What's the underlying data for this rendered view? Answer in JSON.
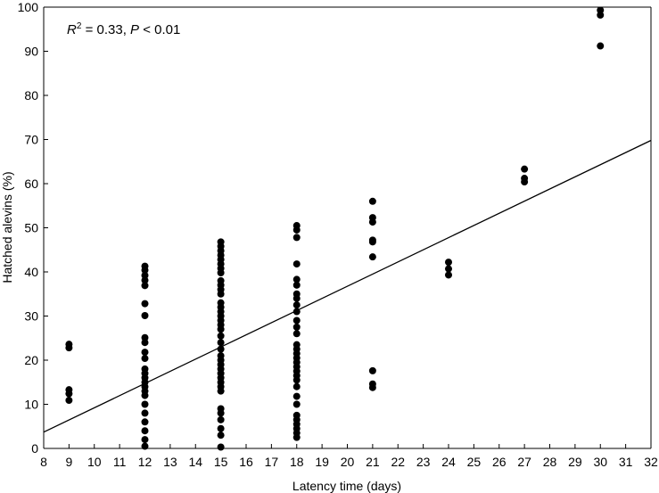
{
  "chart_data": {
    "type": "scatter",
    "title": "",
    "xlabel": "Latency time (days)",
    "ylabel": "Hatched alevins (%)",
    "xlim": [
      8,
      32
    ],
    "ylim": [
      0,
      100
    ],
    "xticks": [
      8,
      9,
      10,
      11,
      12,
      13,
      14,
      15,
      16,
      17,
      18,
      19,
      20,
      21,
      22,
      23,
      24,
      25,
      26,
      27,
      28,
      29,
      30,
      31,
      32
    ],
    "yticks": [
      0,
      10,
      20,
      30,
      40,
      50,
      60,
      70,
      80,
      90,
      100
    ],
    "grid": false,
    "legend": "none",
    "annotation": {
      "r_label": "R",
      "r_exp": "2",
      "r_value": " = 0.33, ",
      "p_label": "P",
      "p_value": " < 0.01"
    },
    "regression_line": {
      "x": [
        8,
        32
      ],
      "y": [
        3.7,
        69.8
      ]
    },
    "points": [
      {
        "x": 9,
        "y": 23.6
      },
      {
        "x": 9,
        "y": 22.8
      },
      {
        "x": 9,
        "y": 13.3
      },
      {
        "x": 9,
        "y": 12.4
      },
      {
        "x": 9,
        "y": 10.9
      },
      {
        "x": 12,
        "y": 41.3
      },
      {
        "x": 12,
        "y": 40.4
      },
      {
        "x": 12,
        "y": 39.2
      },
      {
        "x": 12,
        "y": 38.1
      },
      {
        "x": 12,
        "y": 36.9
      },
      {
        "x": 12,
        "y": 32.8
      },
      {
        "x": 12,
        "y": 30.1
      },
      {
        "x": 12,
        "y": 25.1
      },
      {
        "x": 12,
        "y": 24.0
      },
      {
        "x": 12,
        "y": 21.8
      },
      {
        "x": 12,
        "y": 20.4
      },
      {
        "x": 12,
        "y": 18.0
      },
      {
        "x": 12,
        "y": 17.0
      },
      {
        "x": 12,
        "y": 16.0
      },
      {
        "x": 12,
        "y": 15.0
      },
      {
        "x": 12,
        "y": 14.0
      },
      {
        "x": 12,
        "y": 13.0
      },
      {
        "x": 12,
        "y": 12.0
      },
      {
        "x": 12,
        "y": 10.0
      },
      {
        "x": 12,
        "y": 8.0
      },
      {
        "x": 12,
        "y": 6.0
      },
      {
        "x": 12,
        "y": 4.0
      },
      {
        "x": 12,
        "y": 2.0
      },
      {
        "x": 12,
        "y": 0.5
      },
      {
        "x": 15,
        "y": 46.8
      },
      {
        "x": 15,
        "y": 45.8
      },
      {
        "x": 15,
        "y": 44.8
      },
      {
        "x": 15,
        "y": 43.8
      },
      {
        "x": 15,
        "y": 42.8
      },
      {
        "x": 15,
        "y": 41.8
      },
      {
        "x": 15,
        "y": 40.8
      },
      {
        "x": 15,
        "y": 39.8
      },
      {
        "x": 15,
        "y": 38.0
      },
      {
        "x": 15,
        "y": 37.0
      },
      {
        "x": 15,
        "y": 36.0
      },
      {
        "x": 15,
        "y": 35.0
      },
      {
        "x": 15,
        "y": 33.0
      },
      {
        "x": 15,
        "y": 32.0
      },
      {
        "x": 15,
        "y": 31.0
      },
      {
        "x": 15,
        "y": 30.0
      },
      {
        "x": 15,
        "y": 29.0
      },
      {
        "x": 15,
        "y": 28.0
      },
      {
        "x": 15,
        "y": 27.0
      },
      {
        "x": 15,
        "y": 25.5
      },
      {
        "x": 15,
        "y": 24.0
      },
      {
        "x": 15,
        "y": 22.5
      },
      {
        "x": 15,
        "y": 21.0
      },
      {
        "x": 15,
        "y": 20.0
      },
      {
        "x": 15,
        "y": 19.0
      },
      {
        "x": 15,
        "y": 18.0
      },
      {
        "x": 15,
        "y": 17.0
      },
      {
        "x": 15,
        "y": 16.0
      },
      {
        "x": 15,
        "y": 15.0
      },
      {
        "x": 15,
        "y": 14.0
      },
      {
        "x": 15,
        "y": 13.0
      },
      {
        "x": 15,
        "y": 9.0
      },
      {
        "x": 15,
        "y": 8.0
      },
      {
        "x": 15,
        "y": 6.5
      },
      {
        "x": 15,
        "y": 4.5
      },
      {
        "x": 15,
        "y": 3.0
      },
      {
        "x": 15,
        "y": 0.3
      },
      {
        "x": 18,
        "y": 50.5
      },
      {
        "x": 18,
        "y": 49.5
      },
      {
        "x": 18,
        "y": 47.8
      },
      {
        "x": 18,
        "y": 41.8
      },
      {
        "x": 18,
        "y": 38.3
      },
      {
        "x": 18,
        "y": 37.0
      },
      {
        "x": 18,
        "y": 35.0
      },
      {
        "x": 18,
        "y": 34.0
      },
      {
        "x": 18,
        "y": 32.5
      },
      {
        "x": 18,
        "y": 31.0
      },
      {
        "x": 18,
        "y": 29.0
      },
      {
        "x": 18,
        "y": 27.5
      },
      {
        "x": 18,
        "y": 26.0
      },
      {
        "x": 18,
        "y": 23.5
      },
      {
        "x": 18,
        "y": 22.5
      },
      {
        "x": 18,
        "y": 21.5
      },
      {
        "x": 18,
        "y": 20.5
      },
      {
        "x": 18,
        "y": 19.5
      },
      {
        "x": 18,
        "y": 18.5
      },
      {
        "x": 18,
        "y": 17.5
      },
      {
        "x": 18,
        "y": 16.5
      },
      {
        "x": 18,
        "y": 15.5
      },
      {
        "x": 18,
        "y": 14.0
      },
      {
        "x": 18,
        "y": 11.8
      },
      {
        "x": 18,
        "y": 10.0
      },
      {
        "x": 18,
        "y": 7.5
      },
      {
        "x": 18,
        "y": 6.5
      },
      {
        "x": 18,
        "y": 5.5
      },
      {
        "x": 18,
        "y": 4.5
      },
      {
        "x": 18,
        "y": 3.5
      },
      {
        "x": 18,
        "y": 2.5
      },
      {
        "x": 21,
        "y": 56.0
      },
      {
        "x": 21,
        "y": 52.3
      },
      {
        "x": 21,
        "y": 51.3
      },
      {
        "x": 21,
        "y": 47.2
      },
      {
        "x": 21,
        "y": 46.8
      },
      {
        "x": 21,
        "y": 43.4
      },
      {
        "x": 21,
        "y": 17.6
      },
      {
        "x": 21,
        "y": 14.6
      },
      {
        "x": 21,
        "y": 13.8
      },
      {
        "x": 24,
        "y": 42.2
      },
      {
        "x": 24,
        "y": 40.7
      },
      {
        "x": 24,
        "y": 39.3
      },
      {
        "x": 27,
        "y": 63.3
      },
      {
        "x": 27,
        "y": 61.2
      },
      {
        "x": 27,
        "y": 60.4
      },
      {
        "x": 30,
        "y": 99.3
      },
      {
        "x": 30,
        "y": 98.2
      },
      {
        "x": 30,
        "y": 91.2
      }
    ]
  }
}
